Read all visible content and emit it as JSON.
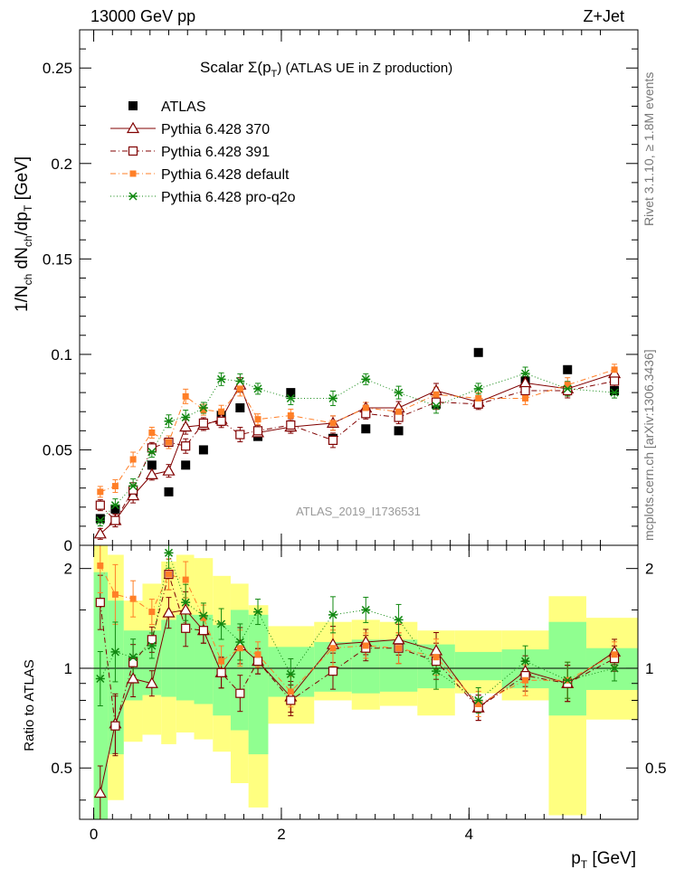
{
  "header": {
    "left": "13000 GeV pp",
    "right": "Z+Jet"
  },
  "side_labels": {
    "rivet": "Rivet 3.1.10, ≥ 1.8M events",
    "mcplots": "mcplots.cern.ch [arXiv:1306.3436]"
  },
  "analysis_id": "ATLAS_2019_I1736531",
  "chart_data": [
    {
      "type": "scatter",
      "title": "Scalar Σ(p_T) (ATLAS UE in Z production)",
      "title_main": "Scalar ",
      "title_sigma": "Σ(p",
      "title_sub": "T",
      "title_rest": ") (ATLAS UE in Z production)",
      "ylabel": "1/N_ch dN_ch/dp_T [GeV]",
      "xlim": [
        -0.15,
        5.8
      ],
      "ylim": [
        0,
        0.27
      ],
      "yticks": [
        0,
        0.05,
        0.1,
        0.15,
        0.2,
        0.25
      ],
      "ytick_labels": [
        "0",
        "0.05",
        "0.1",
        "0.15",
        "0.2",
        "0.25"
      ],
      "legend_position": "top-left",
      "series": [
        {
          "name": "ATLAS",
          "color": "#000000",
          "marker": "filled-square",
          "x": [
            0.07,
            0.23,
            0.42,
            0.62,
            0.8,
            0.98,
            1.17,
            1.36,
            1.56,
            1.75,
            2.1,
            2.55,
            2.9,
            3.25,
            3.65,
            4.1,
            4.6,
            5.05,
            5.55
          ],
          "y": [
            0.014,
            0.019,
            0.028,
            0.042,
            0.028,
            0.042,
            0.05,
            0.068,
            0.072,
            0.057,
            0.08,
            0.056,
            0.061,
            0.06,
            0.074,
            0.101,
            0.086,
            0.092,
            0.081
          ]
        },
        {
          "name": "Pythia 6.428 370",
          "color": "#800000",
          "marker": "open-triangle",
          "x": [
            0.07,
            0.23,
            0.42,
            0.62,
            0.8,
            0.98,
            1.17,
            1.36,
            1.56,
            1.75,
            2.1,
            2.55,
            2.9,
            3.25,
            3.65,
            4.1,
            4.6,
            5.05,
            5.55
          ],
          "y": [
            0.006,
            0.013,
            0.026,
            0.037,
            0.039,
            0.062,
            0.063,
            0.066,
            0.084,
            0.059,
            0.062,
            0.064,
            0.072,
            0.072,
            0.081,
            0.075,
            0.085,
            0.082,
            0.09
          ]
        },
        {
          "name": "Pythia 6.428 391",
          "color": "#800000",
          "marker": "open-square",
          "x": [
            0.07,
            0.23,
            0.42,
            0.62,
            0.8,
            0.98,
            1.17,
            1.36,
            1.56,
            1.75,
            2.1,
            2.55,
            2.9,
            3.25,
            3.65,
            4.1,
            4.6,
            5.05,
            5.55
          ],
          "y": [
            0.021,
            0.013,
            0.029,
            0.051,
            0.054,
            0.052,
            0.064,
            0.065,
            0.058,
            0.06,
            0.063,
            0.055,
            0.069,
            0.067,
            0.075,
            0.074,
            0.081,
            0.081,
            0.086
          ]
        },
        {
          "name": "Pythia 6.428 default",
          "color": "#ff7f27",
          "marker": "filled-square-small",
          "x": [
            0.07,
            0.23,
            0.42,
            0.62,
            0.8,
            0.98,
            1.17,
            1.36,
            1.56,
            1.75,
            2.1,
            2.55,
            2.9,
            3.25,
            3.65,
            4.1,
            4.6,
            5.05,
            5.55
          ],
          "y": [
            0.028,
            0.031,
            0.045,
            0.059,
            0.054,
            0.078,
            0.071,
            0.07,
            0.082,
            0.066,
            0.068,
            0.064,
            0.072,
            0.07,
            0.079,
            0.077,
            0.077,
            0.084,
            0.092
          ]
        },
        {
          "name": "Pythia 6.428 pro-q2o",
          "color": "#118811",
          "marker": "star",
          "x": [
            0.07,
            0.23,
            0.42,
            0.62,
            0.8,
            0.98,
            1.17,
            1.36,
            1.56,
            1.75,
            2.1,
            2.55,
            2.9,
            3.25,
            3.65,
            4.1,
            4.6,
            5.05,
            5.55
          ],
          "y": [
            0.013,
            0.021,
            0.031,
            0.049,
            0.065,
            0.067,
            0.072,
            0.087,
            0.086,
            0.082,
            0.077,
            0.077,
            0.087,
            0.08,
            0.073,
            0.082,
            0.09,
            0.082,
            0.08
          ]
        }
      ]
    },
    {
      "type": "scatter",
      "ylabel": "Ratio to ATLAS",
      "xlabel": "p_T [GeV]",
      "xlabel_main": "p",
      "xlabel_sub": "T",
      "xlabel_rest": " [GeV]",
      "xlim": [
        -0.15,
        5.8
      ],
      "ylim": [
        0.35,
        2.35
      ],
      "yticks": [
        0.5,
        1,
        2
      ],
      "ytick_labels": [
        "0.5",
        "1",
        "2"
      ],
      "xticks": [
        0,
        2,
        4
      ],
      "xtick_labels": [
        "0",
        "2",
        "4"
      ],
      "bands": {
        "edges": [
          0.0,
          0.15,
          0.32,
          0.52,
          0.72,
          0.88,
          1.07,
          1.27,
          1.46,
          1.65,
          1.86,
          2.35,
          2.75,
          3.05,
          3.45,
          3.85,
          4.35,
          4.85,
          5.25,
          5.85
        ],
        "yellow_lo": [
          0.35,
          0.4,
          0.6,
          0.63,
          0.59,
          0.64,
          0.61,
          0.56,
          0.45,
          0.38,
          0.68,
          0.8,
          0.75,
          0.77,
          0.72,
          0.84,
          0.8,
          0.36,
          0.7
        ],
        "yellow_hi": [
          2.35,
          2.2,
          1.6,
          1.8,
          2.1,
          2.2,
          2.15,
          1.9,
          1.8,
          1.55,
          1.34,
          1.38,
          1.4,
          1.38,
          1.3,
          1.3,
          1.3,
          1.65,
          1.42
        ],
        "green_lo": [
          0.35,
          0.55,
          0.8,
          0.83,
          0.82,
          0.8,
          0.78,
          0.72,
          0.65,
          0.55,
          0.82,
          0.85,
          0.84,
          0.85,
          0.87,
          0.92,
          0.87,
          0.72,
          0.86
        ],
        "green_hi": [
          1.95,
          1.6,
          1.3,
          1.3,
          1.4,
          1.45,
          1.45,
          1.35,
          1.5,
          1.45,
          1.16,
          1.2,
          1.22,
          1.22,
          1.18,
          1.12,
          1.14,
          1.38,
          1.15
        ]
      },
      "series": [
        {
          "name": "Pythia 6.428 370",
          "x": [
            0.07,
            0.23,
            0.42,
            0.62,
            0.8,
            0.98,
            1.17,
            1.36,
            1.56,
            1.75,
            2.1,
            2.55,
            2.9,
            3.25,
            3.65,
            4.1,
            4.6,
            5.05,
            5.55
          ],
          "y": [
            0.42,
            0.68,
            0.93,
            0.9,
            1.47,
            1.5,
            1.3,
            0.97,
            1.17,
            1.05,
            0.82,
            1.18,
            1.2,
            1.22,
            1.13,
            0.76,
            0.98,
            0.9,
            1.12
          ]
        },
        {
          "name": "Pythia 6.428 391",
          "x": [
            0.07,
            0.23,
            0.42,
            0.62,
            0.8,
            0.98,
            1.17,
            1.36,
            1.56,
            1.75,
            2.1,
            2.55,
            2.9,
            3.25,
            3.65,
            4.1,
            4.6,
            5.05,
            5.55
          ],
          "y": [
            1.58,
            0.67,
            1.04,
            1.22,
            1.92,
            1.32,
            1.3,
            0.97,
            0.84,
            1.05,
            0.8,
            0.98,
            1.15,
            1.15,
            1.05,
            0.76,
            0.95,
            0.9,
            1.07
          ]
        },
        {
          "name": "Pythia 6.428 default",
          "x": [
            0.07,
            0.23,
            0.42,
            0.62,
            0.8,
            0.98,
            1.17,
            1.36,
            1.56,
            1.75,
            2.1,
            2.55,
            2.9,
            3.25,
            3.65,
            4.1,
            4.6,
            5.05,
            5.55
          ],
          "y": [
            2.04,
            1.67,
            1.62,
            1.48,
            1.92,
            1.85,
            1.42,
            1.05,
            1.15,
            1.1,
            0.85,
            1.15,
            1.17,
            1.15,
            1.08,
            0.78,
            0.92,
            0.92,
            1.1
          ]
        },
        {
          "name": "Pythia 6.428 pro-q2o",
          "x": [
            0.07,
            0.23,
            0.42,
            0.62,
            0.8,
            0.98,
            1.17,
            1.36,
            1.56,
            1.75,
            2.1,
            2.55,
            2.9,
            3.25,
            3.65,
            4.1,
            4.6,
            5.05,
            5.55
          ],
          "y": [
            0.93,
            1.12,
            1.08,
            1.17,
            2.23,
            1.58,
            1.44,
            1.36,
            1.2,
            1.48,
            0.96,
            1.45,
            1.5,
            1.4,
            0.98,
            0.8,
            1.05,
            0.92,
            1.0
          ]
        }
      ]
    }
  ]
}
